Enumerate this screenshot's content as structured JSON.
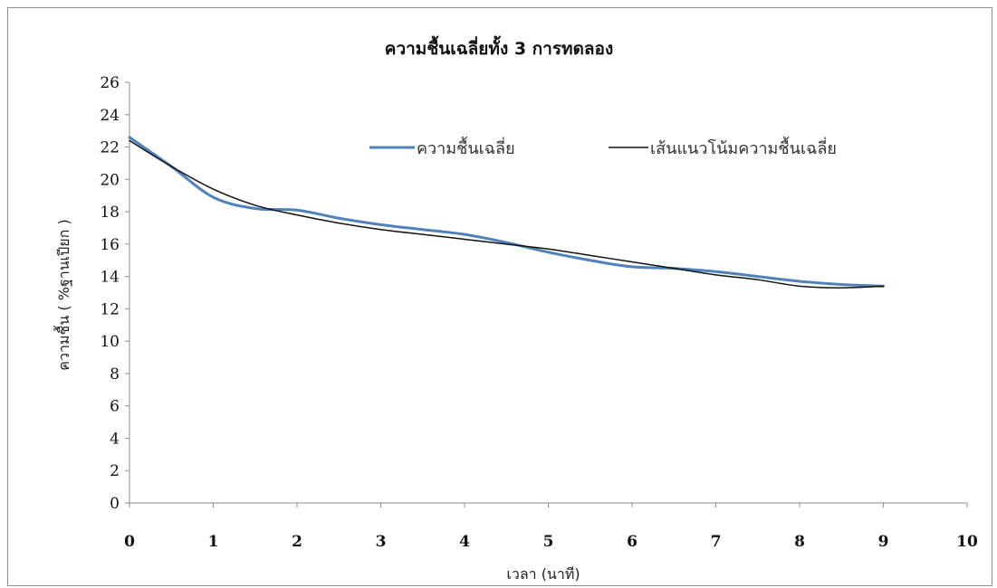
{
  "chart_data": {
    "type": "line",
    "title": "ความชื้นเฉลี่ยทั้ง 3 การทดลอง",
    "xlabel": "เวลา (นาที)",
    "ylabel": "ความชื้น ( %ฐานเปียก )",
    "xlim": [
      0,
      10
    ],
    "ylim": [
      0,
      26
    ],
    "x_ticks": [
      "0",
      "1",
      "2",
      "3",
      "4",
      "5",
      "6",
      "7",
      "8",
      "9",
      "10"
    ],
    "y_ticks": [
      "0",
      "2",
      "4",
      "6",
      "8",
      "10",
      "12",
      "14",
      "16",
      "18",
      "20",
      "22",
      "24",
      "26"
    ],
    "grid": false,
    "legend_position": "top-right",
    "series": [
      {
        "name": "ความชื้นเฉลี่ย",
        "color": "#4f81bd",
        "x": [
          0,
          0.5,
          1,
          1.5,
          2,
          2.5,
          3,
          3.5,
          4,
          4.5,
          5,
          5.5,
          6,
          6.5,
          7,
          7.5,
          8,
          8.5,
          9
        ],
        "y": [
          22.6,
          20.8,
          18.9,
          18.2,
          18.1,
          17.6,
          17.2,
          16.9,
          16.6,
          16.1,
          15.5,
          15.0,
          14.6,
          14.5,
          14.3,
          14.0,
          13.7,
          13.5,
          13.4
        ]
      },
      {
        "name": "เส้นแนวโน้มความชื้นเฉลี่ย",
        "color": "#111111",
        "x": [
          0,
          0.5,
          1,
          1.5,
          2,
          2.5,
          3,
          3.5,
          4,
          4.5,
          5,
          5.5,
          6,
          6.5,
          7,
          7.5,
          8,
          8.5,
          9
        ],
        "y": [
          22.4,
          20.8,
          19.4,
          18.4,
          17.8,
          17.3,
          16.9,
          16.6,
          16.3,
          16.0,
          15.7,
          15.3,
          14.9,
          14.5,
          14.1,
          13.8,
          13.4,
          13.3,
          13.4
        ]
      }
    ]
  }
}
